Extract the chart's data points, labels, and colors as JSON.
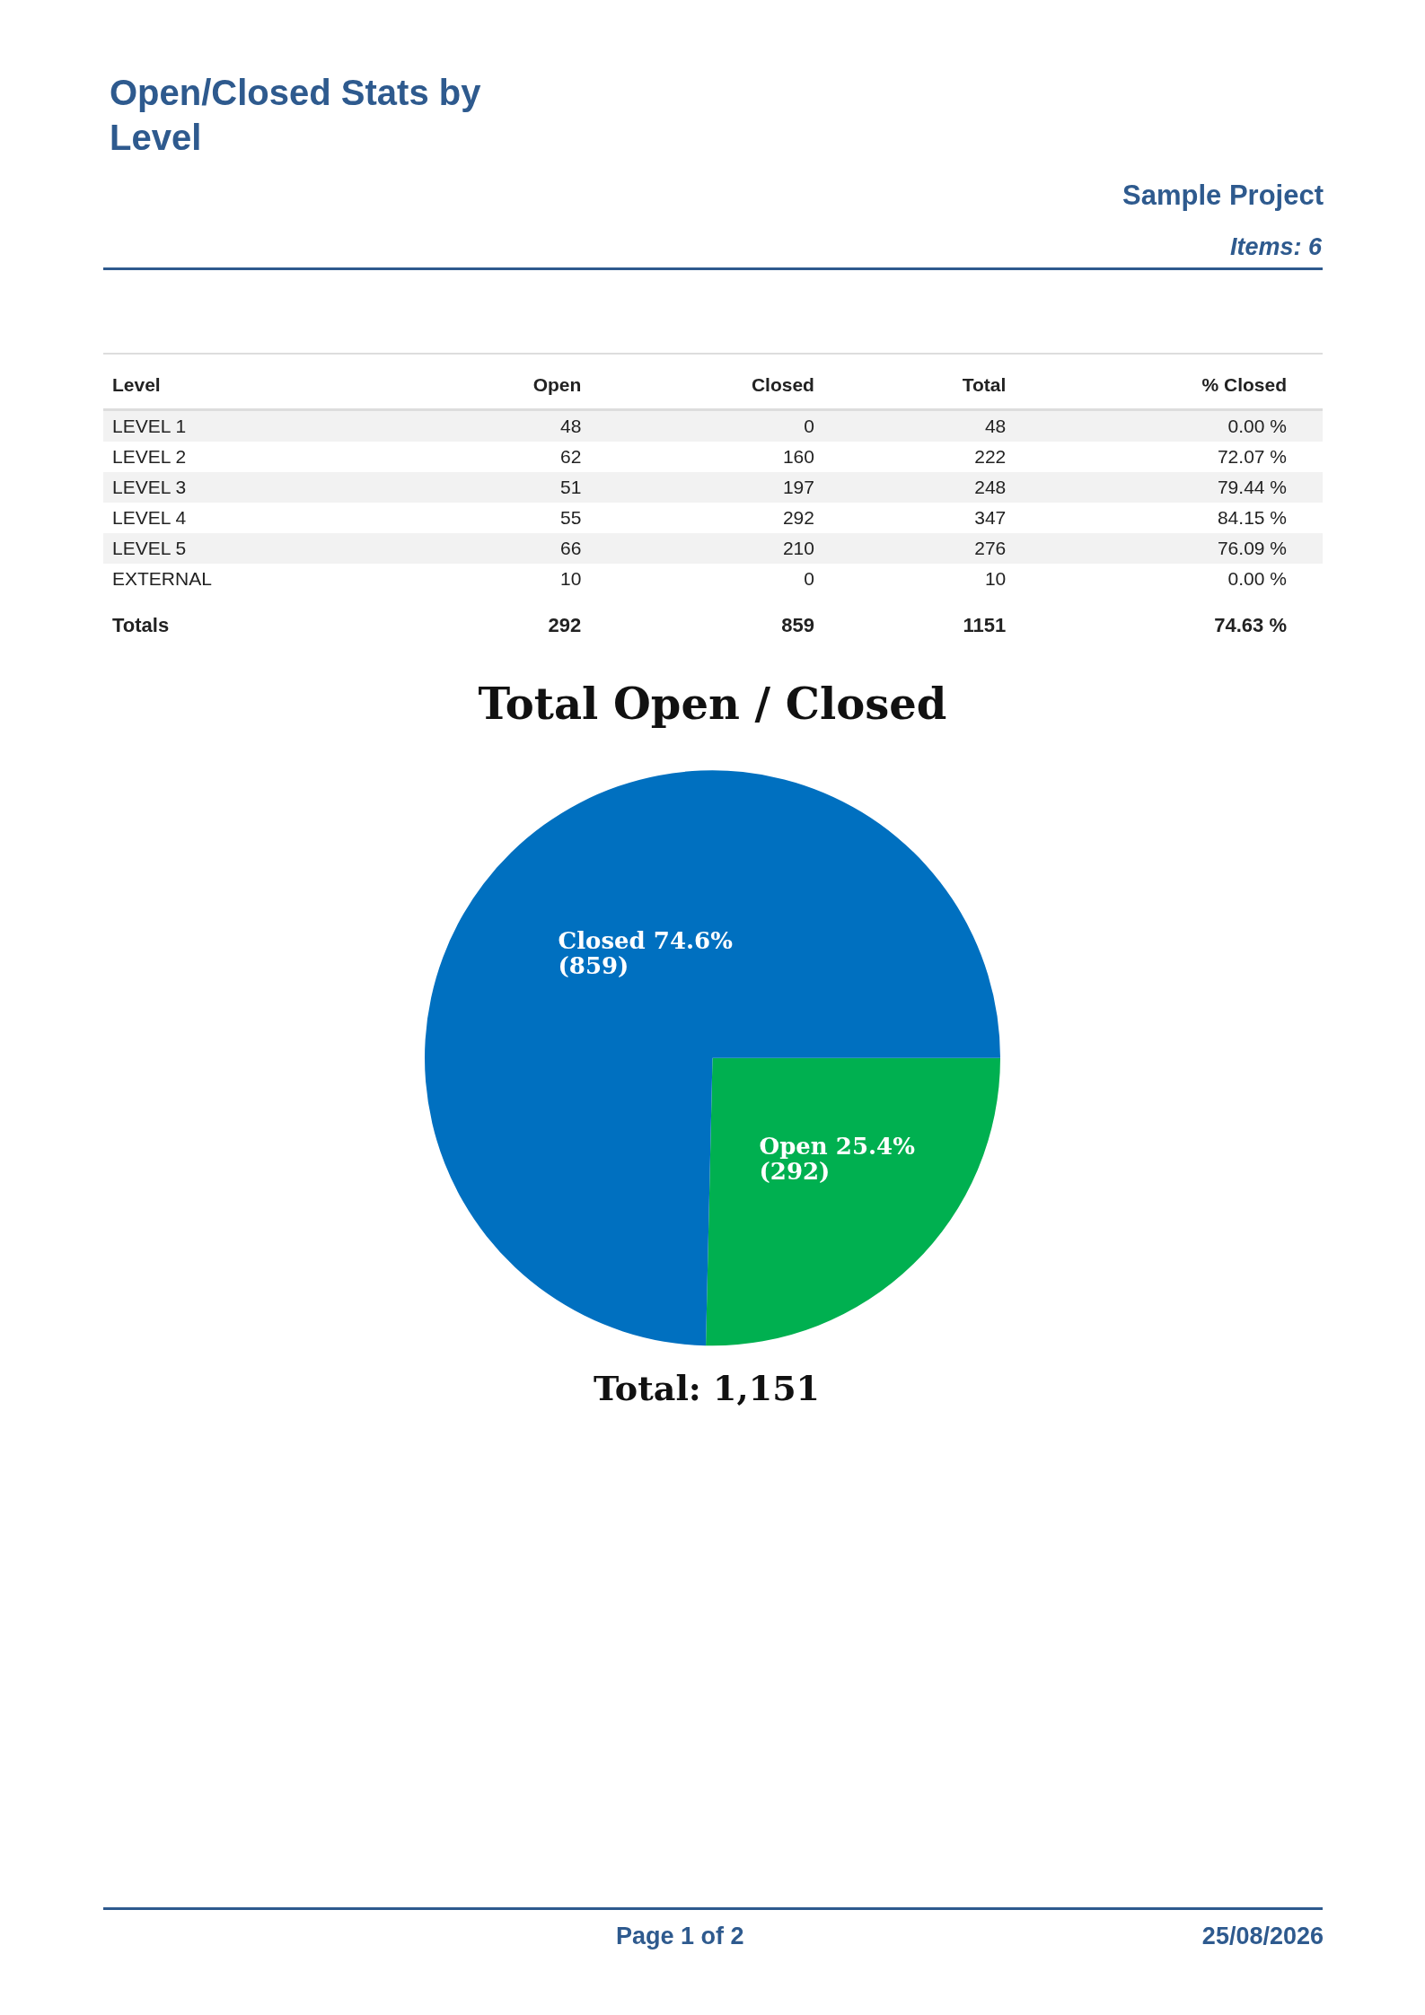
{
  "chart_data": [
    {
      "type": "other",
      "title": "Open/Closed Stats by Level",
      "annotations": [
        "Sample Project",
        "Items: 6",
        "Level",
        "Open",
        "Closed",
        "Total",
        "% Closed",
        "LEVEL 1",
        "48",
        "0",
        "48",
        "0.00 %",
        "LEVEL 2",
        "62",
        "160",
        "222",
        "72.07 %",
        "LEVEL 3",
        "51",
        "197",
        "248",
        "79.44 %",
        "LEVEL 4",
        "55",
        "292",
        "347",
        "84.15 %",
        "LEVEL 5",
        "66",
        "210",
        "276",
        "76.09 %",
        "EXTERNAL",
        "10",
        "0",
        "10",
        "0.00 %",
        "Totals",
        "292",
        "859",
        "1151",
        "74.63 %"
      ]
    },
    {
      "type": "pie",
      "title": "Total Open / Closed",
      "categories": [
        "Open",
        "Closed"
      ],
      "values": [
        292,
        859
      ],
      "colors": [
        "#00b050",
        "#0070c0"
      ],
      "value_labels": [
        "25.4% (292)",
        "74.6% (859)"
      ],
      "annotations": [
        "Total: 1,151",
        "Page 1 of 2",
        "25/08/2026"
      ]
    }
  ]
}
